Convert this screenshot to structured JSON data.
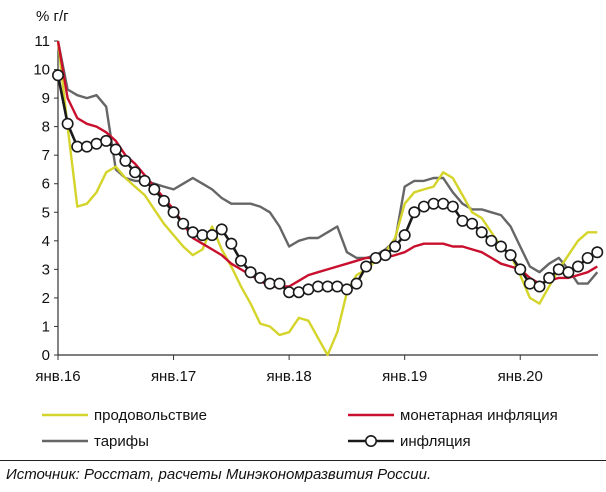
{
  "chart_data": {
    "type": "line",
    "ylabel": "% г/г",
    "ylim": [
      0,
      11
    ],
    "yticks": [
      0,
      1,
      2,
      3,
      4,
      5,
      6,
      7,
      8,
      9,
      10,
      11
    ],
    "xticks": [
      {
        "label": "янв.16",
        "month": 0
      },
      {
        "label": "янв.17",
        "month": 12
      },
      {
        "label": "янв.18",
        "month": 24
      },
      {
        "label": "янв.19",
        "month": 36
      },
      {
        "label": "янв.20",
        "month": 48
      }
    ],
    "x_months": [
      0,
      1,
      2,
      3,
      4,
      5,
      6,
      7,
      8,
      9,
      10,
      11,
      12,
      13,
      14,
      15,
      16,
      17,
      18,
      19,
      20,
      21,
      22,
      23,
      24,
      25,
      26,
      27,
      28,
      29,
      30,
      31,
      32,
      33,
      34,
      35,
      36,
      37,
      38,
      39,
      40,
      41,
      42,
      43,
      44,
      45,
      46,
      47,
      48,
      49,
      50,
      51,
      52,
      53,
      54,
      55,
      56
    ],
    "series": [
      {
        "name": "продовольствие",
        "color": "#d4d42a",
        "values": [
          11.0,
          8.0,
          5.2,
          5.3,
          5.7,
          6.4,
          6.6,
          6.2,
          5.9,
          5.6,
          5.1,
          4.6,
          4.2,
          3.8,
          3.5,
          3.7,
          4.5,
          3.7,
          3.1,
          2.4,
          1.8,
          1.1,
          1.0,
          0.7,
          0.8,
          1.3,
          1.2,
          0.6,
          0.0,
          0.8,
          2.2,
          2.8,
          3.0,
          3.3,
          3.6,
          4.1,
          5.3,
          5.7,
          5.8,
          5.9,
          6.4,
          6.2,
          5.6,
          5.0,
          4.8,
          4.3,
          3.8,
          3.5,
          2.8,
          2.0,
          1.8,
          2.4,
          3.0,
          3.5,
          4.0,
          4.3,
          4.3
        ]
      },
      {
        "name": "монетарная инфляция",
        "color": "#c8102e",
        "values": [
          11.0,
          9.0,
          8.3,
          8.1,
          8.0,
          7.8,
          7.5,
          7.0,
          6.7,
          6.3,
          5.9,
          5.5,
          5.1,
          4.6,
          4.1,
          3.9,
          3.7,
          3.5,
          3.2,
          3.0,
          2.8,
          2.6,
          2.4,
          2.4,
          2.4,
          2.6,
          2.8,
          2.9,
          3.0,
          3.1,
          3.2,
          3.3,
          3.4,
          3.4,
          3.4,
          3.5,
          3.6,
          3.8,
          3.9,
          3.9,
          3.9,
          3.8,
          3.8,
          3.7,
          3.6,
          3.4,
          3.2,
          3.1,
          3.0,
          2.7,
          2.5,
          2.6,
          2.7,
          2.7,
          2.8,
          2.9,
          3.1
        ]
      },
      {
        "name": "тарифы",
        "color": "#666666",
        "values": [
          11.0,
          9.3,
          9.1,
          9.0,
          9.1,
          8.7,
          6.5,
          6.2,
          6.1,
          6.1,
          6.0,
          5.9,
          5.8,
          6.0,
          6.2,
          6.0,
          5.8,
          5.5,
          5.3,
          5.3,
          5.3,
          5.2,
          5.0,
          4.5,
          3.8,
          4.0,
          4.1,
          4.1,
          4.3,
          4.5,
          3.6,
          3.4,
          3.4,
          3.5,
          3.7,
          4.0,
          5.9,
          6.1,
          6.1,
          6.2,
          6.2,
          5.7,
          5.3,
          5.1,
          5.1,
          5.0,
          4.9,
          4.5,
          3.8,
          3.1,
          2.9,
          3.2,
          3.4,
          3.0,
          2.5,
          2.5,
          2.9
        ]
      },
      {
        "name": "инфляция",
        "color": "#1a1a1a",
        "marker": "circle",
        "values": [
          9.8,
          8.1,
          7.3,
          7.3,
          7.4,
          7.5,
          7.2,
          6.8,
          6.4,
          6.1,
          5.8,
          5.4,
          5.0,
          4.6,
          4.3,
          4.2,
          4.2,
          4.4,
          3.9,
          3.3,
          2.9,
          2.7,
          2.5,
          2.5,
          2.2,
          2.2,
          2.3,
          2.4,
          2.4,
          2.4,
          2.3,
          2.5,
          3.1,
          3.4,
          3.5,
          3.8,
          4.2,
          5.0,
          5.2,
          5.3,
          5.3,
          5.2,
          4.7,
          4.6,
          4.3,
          4.0,
          3.8,
          3.5,
          3.0,
          2.5,
          2.4,
          2.7,
          3.0,
          2.9,
          3.1,
          3.4,
          3.6
        ]
      }
    ],
    "legend": "bottom",
    "grid": false
  },
  "source_text": "Источник: Росстат, расчеты Минэкономразвития России."
}
